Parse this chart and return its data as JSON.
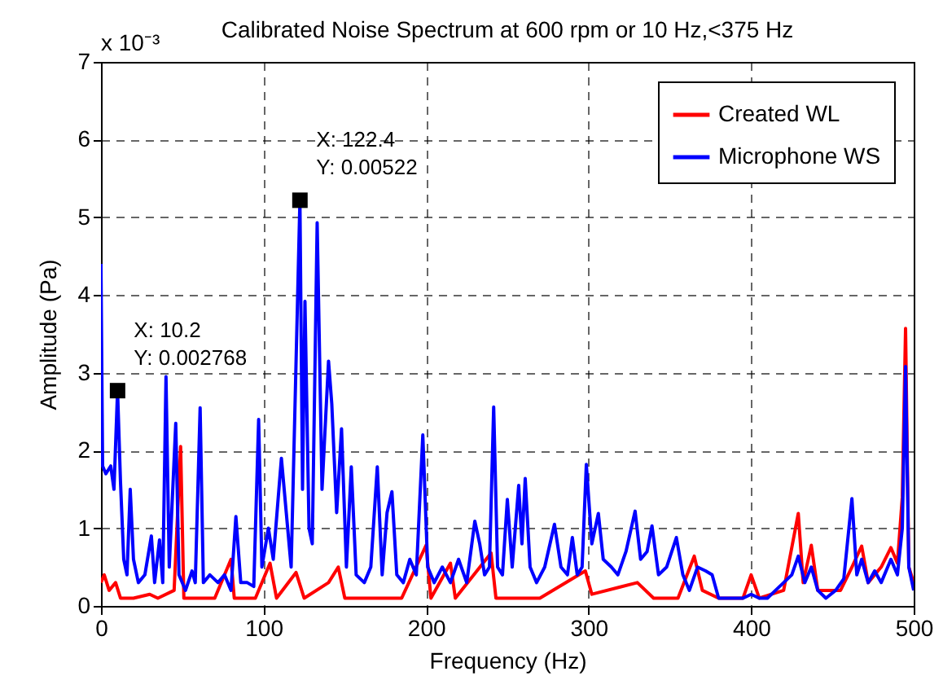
{
  "chart_data": {
    "type": "line",
    "title": "Calibrated Noise Spectrum at 600 rpm or 10 Hz,<375 Hz",
    "xlabel": "Frequency (Hz)",
    "ylabel": "Amplitude (Pa)",
    "xlim": [
      0,
      500
    ],
    "xticks": [
      0,
      100,
      200,
      300,
      400,
      500
    ],
    "ylim": [
      0,
      7
    ],
    "yticks": [
      0,
      1,
      2,
      3,
      4,
      5,
      6,
      7
    ],
    "grid": true,
    "legend": "top right",
    "annotations": [
      "x 10⁻³",
      {
        "text": "X: 10.2\nY: 0.002768",
        "x": 10.2,
        "y": 2.77
      },
      {
        "text": "X: 122.4\nY: 0.00522",
        "x": 122.4,
        "y": 5.22
      }
    ],
    "series": [
      {
        "name": "Created WL",
        "color": "#ff0000",
        "x": [
          0,
          2,
          5,
          9,
          12,
          20,
          30,
          35,
          45,
          49,
          51,
          60,
          70,
          80,
          82,
          95,
          104,
          108,
          120,
          125,
          140,
          146,
          150,
          170,
          185,
          200,
          203,
          215,
          218,
          240,
          243,
          270,
          298,
          302,
          330,
          340,
          355,
          365,
          370,
          380,
          395,
          400,
          405,
          420,
          429,
          432,
          437,
          441,
          455,
          462,
          468,
          472,
          480,
          486,
          490,
          493,
          495,
          497,
          500
        ],
        "values": [
          0.3,
          0.4,
          0.2,
          0.3,
          0.1,
          0.1,
          0.15,
          0.1,
          0.2,
          2.05,
          0.1,
          0.1,
          0.1,
          0.6,
          0.1,
          0.1,
          0.55,
          0.1,
          0.43,
          0.1,
          0.3,
          0.5,
          0.1,
          0.1,
          0.1,
          0.78,
          0.1,
          0.55,
          0.1,
          0.68,
          0.1,
          0.1,
          0.45,
          0.15,
          0.3,
          0.1,
          0.1,
          0.64,
          0.2,
          0.1,
          0.1,
          0.4,
          0.1,
          0.2,
          1.19,
          0.3,
          0.78,
          0.2,
          0.2,
          0.5,
          0.77,
          0.3,
          0.5,
          0.75,
          0.55,
          1.4,
          3.57,
          0.5,
          0.3
        ]
      },
      {
        "name": "Microphone WS",
        "color": "#0000ff",
        "x": [
          0,
          1,
          3,
          6,
          8,
          10.2,
          12,
          14,
          16,
          18,
          20,
          23,
          27,
          31,
          33,
          36,
          38,
          40,
          42,
          46,
          48,
          52,
          56,
          58,
          61,
          63,
          67,
          72,
          76,
          80,
          83,
          86,
          90,
          94,
          97,
          99,
          103,
          106,
          111,
          114,
          117,
          122.4,
          124,
          125.5,
          128,
          130,
          133,
          136,
          140,
          142,
          145,
          148,
          151,
          154,
          157,
          162,
          166,
          170,
          173,
          176,
          179,
          182,
          186,
          190,
          194,
          198,
          201,
          205,
          210,
          215,
          220,
          225,
          230,
          233,
          236,
          239,
          241.6,
          244,
          247,
          250,
          253,
          257,
          259,
          261,
          264,
          268,
          273,
          279,
          283,
          287,
          290,
          293,
          296,
          298.6,
          302,
          306,
          309,
          314,
          318,
          323,
          328.6,
          332,
          336,
          339,
          343,
          348,
          354,
          358,
          362,
          367,
          372,
          376,
          380,
          385,
          390,
          395,
          400,
          405,
          410,
          415,
          420,
          425,
          429,
          433,
          437,
          441,
          446,
          452,
          457,
          462,
          465,
          468,
          472,
          476,
          480,
          486,
          490,
          493,
          495,
          497,
          500
        ],
        "values": [
          4.4,
          1.8,
          1.7,
          1.8,
          1.5,
          2.77,
          1.6,
          0.6,
          0.4,
          1.5,
          0.6,
          0.3,
          0.4,
          0.9,
          0.3,
          0.85,
          0.3,
          2.95,
          0.5,
          2.35,
          0.4,
          0.2,
          0.45,
          0.3,
          2.55,
          0.3,
          0.4,
          0.3,
          0.4,
          0.2,
          1.15,
          0.3,
          0.3,
          0.25,
          2.4,
          0.5,
          1.0,
          0.6,
          1.9,
          1.2,
          0.5,
          5.22,
          1.5,
          3.92,
          1.0,
          0.8,
          4.93,
          1.5,
          3.15,
          2.6,
          1.2,
          2.28,
          0.5,
          1.79,
          0.4,
          0.3,
          0.5,
          1.79,
          0.4,
          1.2,
          1.47,
          0.4,
          0.3,
          0.6,
          0.4,
          2.2,
          0.5,
          0.3,
          0.5,
          0.3,
          0.6,
          0.3,
          1.09,
          0.8,
          0.4,
          0.5,
          2.56,
          0.5,
          0.4,
          1.37,
          0.5,
          1.55,
          0.8,
          1.64,
          0.5,
          0.3,
          0.5,
          1.05,
          0.5,
          0.4,
          0.88,
          0.4,
          0.5,
          1.82,
          0.8,
          1.19,
          0.6,
          0.5,
          0.4,
          0.7,
          1.22,
          0.6,
          0.7,
          1.03,
          0.4,
          0.5,
          0.88,
          0.4,
          0.2,
          0.5,
          0.45,
          0.4,
          0.1,
          0.1,
          0.1,
          0.1,
          0.15,
          0.1,
          0.1,
          0.2,
          0.3,
          0.4,
          0.64,
          0.3,
          0.5,
          0.2,
          0.1,
          0.2,
          0.35,
          1.38,
          0.4,
          0.6,
          0.3,
          0.45,
          0.3,
          0.6,
          0.4,
          1.0,
          3.08,
          0.5,
          0.2
        ]
      }
    ]
  }
}
